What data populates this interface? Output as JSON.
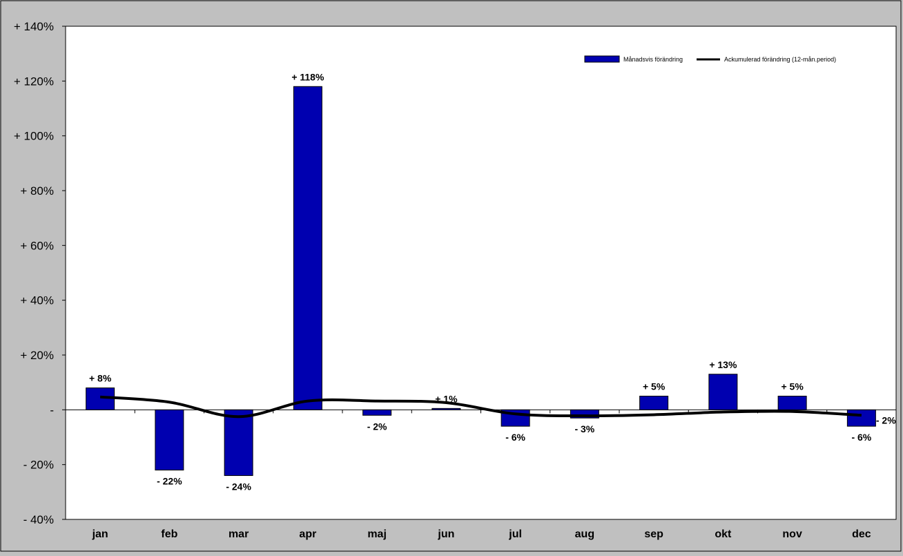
{
  "chart_data": {
    "type": "bar",
    "categories": [
      "jan",
      "feb",
      "mar",
      "apr",
      "maj",
      "jun",
      "jul",
      "aug",
      "sep",
      "okt",
      "nov",
      "dec"
    ],
    "series": [
      {
        "name": "Månadsvis förändring",
        "kind": "bar",
        "color": "#0000b0",
        "values": [
          8,
          -22,
          -24,
          118,
          -2,
          0.5,
          -6,
          -3,
          5,
          13,
          5,
          -6
        ],
        "labels": [
          "+ 8%",
          "- 22%",
          "- 24%",
          "+ 118%",
          "- 2%",
          "+ 1%",
          "- 6%",
          "- 3%",
          "+ 5%",
          "+ 13%",
          "+ 5%",
          "- 6%"
        ]
      },
      {
        "name": "Ackumulerad förändring (12-mån.period)",
        "kind": "line",
        "color": "#000000",
        "values": [
          4.7,
          2.8,
          -2.5,
          3.2,
          3.2,
          2.6,
          -1.5,
          -2.2,
          -1.8,
          -0.8,
          -0.6,
          -2
        ],
        "end_label": "- 2%"
      }
    ],
    "ylim": [
      -40,
      140
    ],
    "yticks": [
      -40,
      -20,
      0,
      20,
      40,
      60,
      80,
      100,
      120,
      140
    ],
    "ytick_labels": [
      "- 40%",
      "- 20%",
      "-",
      "+ 20%",
      "+ 40%",
      "+ 60%",
      "+ 80%",
      "+ 100%",
      "+ 120%",
      "+ 140%"
    ],
    "grid": false,
    "legend_position": "top-right",
    "title": "",
    "xlabel": "",
    "ylabel": "",
    "background_color": "#c0c0c0",
    "plot_background_color": "#ffffff"
  }
}
